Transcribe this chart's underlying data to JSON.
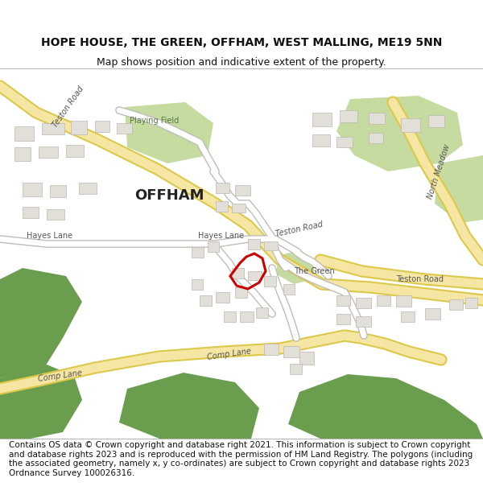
{
  "title_line1": "HOPE HOUSE, THE GREEN, OFFHAM, WEST MALLING, ME19 5NN",
  "title_line2": "Map shows position and indicative extent of the property.",
  "copyright_text": "Contains OS data © Crown copyright and database right 2021. This information is subject to Crown copyright and database rights 2023 and is reproduced with the permission of HM Land Registry. The polygons (including the associated geometry, namely x, y co-ordinates) are subject to Crown copyright and database rights 2023 Ordnance Survey 100026316.",
  "title_fontsize": 10,
  "subtitle_fontsize": 9,
  "copyright_fontsize": 7.5,
  "bg_color": "#ffffff",
  "map_bg": "#f0ede8",
  "road_yellow_fill": "#f5e6a3",
  "road_yellow_border": "#dcc84a",
  "green_dark": "#6a9e4e",
  "green_light": "#c5dba0",
  "building_color": "#e2dfd9",
  "building_edge": "#bbb8b2",
  "road_white_fill": "#ffffff",
  "road_gray_border": "#c0bdb8",
  "red_boundary": "#cc0000",
  "text_dark": "#222222",
  "text_road": "#555555"
}
